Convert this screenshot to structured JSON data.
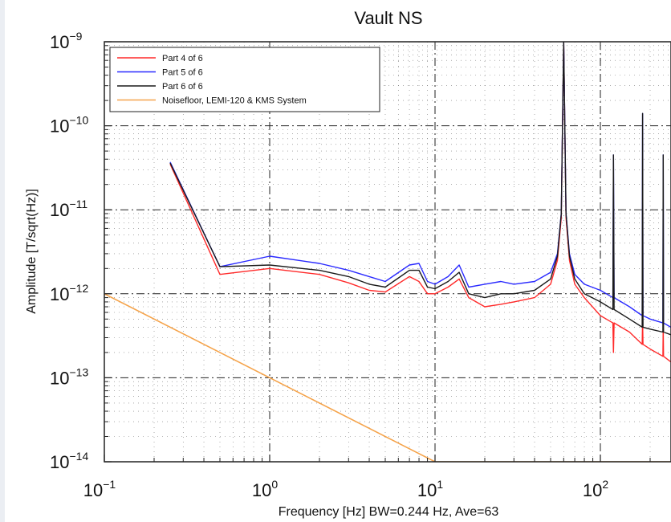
{
  "chart_data": {
    "type": "line",
    "title": "Vault NS",
    "xlabel": "Frequency [Hz]  BW=0.244 Hz, Ave=63",
    "ylabel": "Amplitude [T/sqrt(Hz)]",
    "xscale": "log",
    "yscale": "log",
    "xlim": [
      0.1,
      300
    ],
    "ylim": [
      1e-14,
      1e-09
    ],
    "grid": true,
    "legend_position": "top-left",
    "x_ticks": [
      {
        "value": 0.1,
        "base": "10",
        "exp": "−1"
      },
      {
        "value": 1,
        "base": "10",
        "exp": "0"
      },
      {
        "value": 10,
        "base": "10",
        "exp": "1"
      },
      {
        "value": 100,
        "base": "10",
        "exp": "2"
      }
    ],
    "y_ticks": [
      {
        "value": 1e-09,
        "base": "10",
        "exp": "−9"
      },
      {
        "value": 1e-10,
        "base": "10",
        "exp": "−10"
      },
      {
        "value": 1e-11,
        "base": "10",
        "exp": "−11"
      },
      {
        "value": 1e-12,
        "base": "10",
        "exp": "−12"
      },
      {
        "value": 1e-13,
        "base": "10",
        "exp": "−13"
      },
      {
        "value": 1e-14,
        "base": "10",
        "exp": "−14"
      }
    ],
    "series": [
      {
        "name": "Part 4 of 6",
        "color": "#ff2a2a",
        "x": [
          0.25,
          0.5,
          1,
          2,
          3,
          4,
          5,
          7,
          8,
          9,
          10,
          12,
          14,
          16,
          20,
          25,
          30,
          40,
          50,
          55,
          58,
          60,
          62,
          65,
          70,
          80,
          100,
          119,
          120,
          121,
          150,
          179,
          180,
          181,
          200,
          239,
          240,
          241,
          300
        ],
        "y": [
          3.5e-11,
          1.7e-12,
          2e-12,
          1.7e-12,
          1.35e-12,
          1.1e-12,
          1.05e-12,
          1.6e-12,
          1.4e-12,
          1e-12,
          1e-12,
          1.2e-12,
          1.5e-12,
          9e-13,
          7e-13,
          7.5e-13,
          8e-13,
          9e-13,
          1.3e-12,
          2.5e-12,
          8e-12,
          1e-09,
          8e-12,
          2.5e-12,
          1.3e-12,
          9e-13,
          5.5e-13,
          4.5e-13,
          2e-13,
          4.5e-13,
          3.5e-13,
          2.5e-13,
          5e-13,
          2.5e-13,
          2.2e-13,
          1.8e-13,
          4e-13,
          1.8e-13,
          1.3e-13
        ]
      },
      {
        "name": "Part 5 of 6",
        "color": "#2a2aff",
        "x": [
          0.25,
          0.5,
          1,
          2,
          3,
          4,
          5,
          7,
          8,
          9,
          10,
          12,
          14,
          16,
          20,
          25,
          30,
          40,
          50,
          55,
          58,
          60,
          62,
          65,
          70,
          80,
          100,
          119,
          120,
          121,
          150,
          179,
          180,
          181,
          200,
          239,
          240,
          241,
          300
        ],
        "y": [
          3.7e-11,
          2.1e-12,
          2.8e-12,
          2.3e-12,
          1.9e-12,
          1.6e-12,
          1.4e-12,
          2.2e-12,
          2.3e-12,
          1.4e-12,
          1.3e-12,
          1.6e-12,
          2.2e-12,
          1.2e-12,
          1.3e-12,
          1.4e-12,
          1.3e-12,
          1.4e-12,
          1.8e-12,
          3e-12,
          9e-12,
          1e-09,
          9e-12,
          3e-12,
          1.7e-12,
          1.3e-12,
          1.1e-12,
          9e-13,
          4.5e-11,
          9e-13,
          7e-13,
          5.5e-13,
          1.4e-10,
          5.5e-13,
          5e-13,
          4.5e-13,
          4.5e-11,
          4.5e-13,
          3.5e-13
        ]
      },
      {
        "name": "Part 6 of 6",
        "color": "#1a1a1a",
        "x": [
          0.25,
          0.5,
          1,
          2,
          3,
          4,
          5,
          7,
          8,
          9,
          10,
          12,
          14,
          16,
          20,
          25,
          30,
          40,
          50,
          55,
          58,
          60,
          62,
          65,
          70,
          80,
          100,
          119,
          120,
          121,
          150,
          179,
          180,
          181,
          200,
          239,
          240,
          241,
          300
        ],
        "y": [
          3.6e-11,
          2.1e-12,
          2.2e-12,
          1.9e-12,
          1.6e-12,
          1.3e-12,
          1.2e-12,
          1.9e-12,
          1.9e-12,
          1.2e-12,
          1.15e-12,
          1.4e-12,
          1.8e-12,
          1e-12,
          9e-13,
          1e-12,
          1e-12,
          1.1e-12,
          1.5e-12,
          2.8e-12,
          9e-12,
          1e-09,
          9e-12,
          2.8e-12,
          1.5e-12,
          1e-12,
          8e-13,
          6.5e-13,
          4.5e-11,
          6.5e-13,
          5e-13,
          4e-13,
          1.4e-10,
          4e-13,
          3.8e-13,
          3.5e-13,
          4.5e-11,
          3.5e-13,
          3e-13
        ]
      },
      {
        "name": "Noisefloor, LEMI-120 & KMS System",
        "color": "#f5a34a",
        "x": [
          0.1,
          10,
          300
        ],
        "y": [
          1e-12,
          1e-14,
          1e-14
        ]
      }
    ]
  }
}
